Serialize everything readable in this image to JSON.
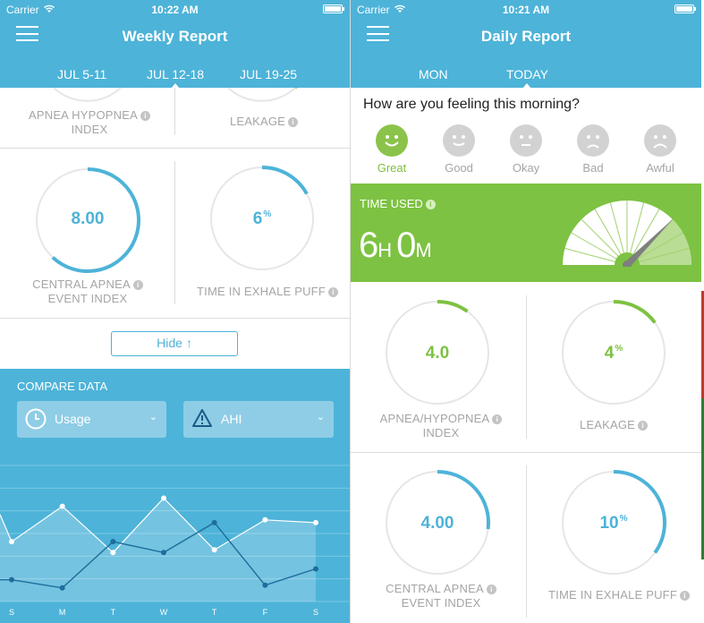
{
  "left": {
    "status": {
      "carrier": "Carrier",
      "time": "10:22 AM"
    },
    "title": "Weekly Report",
    "tabs": [
      "JUL 5-11",
      "JUL 12-18",
      "JUL 19-25"
    ],
    "active_tab": "JUL 12-18",
    "cards": {
      "ahi_label_1": "APNEA HYPOPNEA",
      "ahi_label_2": "INDEX",
      "leakage_label": "LEAKAGE",
      "central_value": "8.00",
      "central_label_1": "CENTRAL APNEA",
      "central_label_2": "EVENT INDEX",
      "exhale_value": "6",
      "exhale_unit": "%",
      "exhale_label": "TIME IN EXHALE PUFF",
      "central_progress": 0.62,
      "exhale_progress": 0.17
    },
    "hide_button": "Hide ↑",
    "compare": {
      "title": "COMPARE DATA",
      "dropdown_1": "Usage",
      "dropdown_2": "AHI"
    },
    "chart_data": {
      "type": "line",
      "categories": [
        "S",
        "M",
        "T",
        "W",
        "T",
        "F",
        "S"
      ],
      "series": [
        {
          "values": [
            2.2,
            3.5,
            1.8,
            3.8,
            1.9,
            3.0,
            2.9
          ]
        },
        {
          "values": [
            0.8,
            0.5,
            2.2,
            1.8,
            2.9,
            0.6,
            1.2
          ]
        }
      ],
      "ylim": [
        0,
        5
      ],
      "grid": true
    }
  },
  "right": {
    "status": {
      "carrier": "Carrier",
      "time": "10:21 AM"
    },
    "title": "Daily Report",
    "tabs": [
      "MON",
      "TODAY"
    ],
    "active_tab": "TODAY",
    "question": "How are you feeling this morning?",
    "moods": [
      "Great",
      "Good",
      "Okay",
      "Bad",
      "Awful"
    ],
    "selected_mood": "Great",
    "time_used": {
      "label": "TIME USED",
      "hours": "6",
      "hours_unit": "H",
      "minutes": "0",
      "minutes_unit": "M",
      "gauge_level": 0.75
    },
    "cards": {
      "ahi_value": "4.0",
      "ahi_label_1": "APNEA/HYPOPNEA",
      "ahi_label_2": "INDEX",
      "ahi_progress": 0.1,
      "leakage_value": "4",
      "leakage_unit": "%",
      "leakage_label": "LEAKAGE",
      "leakage_progress": 0.15,
      "central_value": "4.00",
      "central_label_1": "CENTRAL APNEA",
      "central_label_2": "EVENT INDEX",
      "central_progress": 0.27,
      "exhale_value": "10",
      "exhale_unit": "%",
      "exhale_label": "TIME IN EXHALE PUFF",
      "exhale_progress": 0.35
    }
  },
  "colors": {
    "header": "#4db3d8",
    "green": "#7dc242",
    "blue_ring": "#4db3d8"
  }
}
